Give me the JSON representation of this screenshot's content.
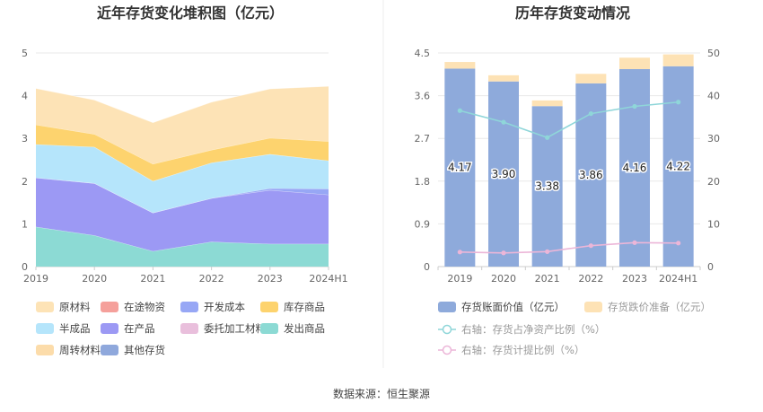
{
  "source_text": "数据来源：恒生聚源",
  "chart_data": [
    {
      "type": "area",
      "stacked": true,
      "title": "近年存货变化堆积图（亿元）",
      "categories": [
        "2019",
        "2020",
        "2021",
        "2022",
        "2023",
        "2024H1"
      ],
      "ylim": [
        0,
        5
      ],
      "yticks": [
        "0",
        "1",
        "2",
        "3",
        "4",
        "5"
      ],
      "grid": true,
      "legend_position": "bottom",
      "series": [
        {
          "name": "发出商品",
          "color": "#8cdad4",
          "values": [
            0.93,
            0.73,
            0.36,
            0.58,
            0.53,
            0.53
          ]
        },
        {
          "name": "在产品",
          "color": "#9c99f4",
          "values": [
            1.15,
            1.22,
            0.9,
            1.02,
            1.26,
            1.15
          ]
        },
        {
          "name": "开发成本",
          "color": "#97a7f5",
          "values": [
            0,
            0,
            0,
            0,
            0.04,
            0.14
          ]
        },
        {
          "name": "半成品",
          "color": "#b5e5fb",
          "values": [
            0.78,
            0.85,
            0.74,
            0.83,
            0.8,
            0.66
          ]
        },
        {
          "name": "委托加工材料",
          "color": "#e9bfdc",
          "values": [
            0,
            0,
            0,
            0,
            0,
            0
          ]
        },
        {
          "name": "在途物资",
          "color": "#f5a09b",
          "values": [
            0,
            0,
            0,
            0,
            0,
            0
          ]
        },
        {
          "name": "库存商品",
          "color": "#fdd36e",
          "values": [
            0.46,
            0.3,
            0.4,
            0.3,
            0.38,
            0.45
          ]
        },
        {
          "name": "其他存货",
          "color": "#8fa8dc",
          "values": [
            0,
            0,
            0,
            0,
            0,
            0
          ]
        },
        {
          "name": "周转材料",
          "color": "#fcdcaa",
          "values": [
            0,
            0,
            0,
            0,
            0,
            0
          ]
        },
        {
          "name": "原材料",
          "color": "#fde3b6",
          "values": [
            0.85,
            0.8,
            0.97,
            1.12,
            1.15,
            1.29
          ]
        }
      ],
      "legend_order": [
        "原材料",
        "在途物资",
        "开发成本",
        "库存商品",
        "半成品",
        "在产品",
        "委托加工材料",
        "发出商品",
        "周转材料",
        "其他存货"
      ]
    },
    {
      "type": "bar",
      "title": "历年存货变动情况",
      "categories": [
        "2019",
        "2020",
        "2021",
        "2022",
        "2023",
        "2024H1"
      ],
      "ylim": [
        0,
        4.5
      ],
      "yticks": [
        "0",
        "0.9",
        "1.8",
        "2.7",
        "3.6",
        "4.5"
      ],
      "y2lim": [
        0,
        50
      ],
      "y2ticks": [
        "0",
        "10",
        "20",
        "30",
        "40",
        "50"
      ],
      "grid": true,
      "legend_position": "bottom",
      "series": [
        {
          "name": "存货账面价值（亿元）",
          "kind": "bar",
          "color": "#8eaadb",
          "values": [
            4.17,
            3.9,
            3.38,
            3.86,
            4.16,
            4.22
          ],
          "labels": [
            "4.17",
            "3.90",
            "3.38",
            "3.86",
            "4.16",
            "4.22"
          ]
        },
        {
          "name": "存货跌价准备（亿元）",
          "kind": "bar",
          "color": "#fde2b5",
          "values": [
            0.14,
            0.13,
            0.12,
            0.2,
            0.24,
            0.25
          ]
        },
        {
          "name": "右轴：存货占净资产比例（%）",
          "kind": "line",
          "axis": "right",
          "color": "#8fd6d9",
          "values": [
            36.5,
            33.8,
            30.2,
            35.8,
            37.5,
            38.5
          ]
        },
        {
          "name": "右轴：存货计提比例（%）",
          "kind": "line",
          "axis": "right",
          "color": "#ecb6d8",
          "values": [
            3.4,
            3.2,
            3.5,
            4.9,
            5.6,
            5.5
          ]
        }
      ]
    }
  ]
}
